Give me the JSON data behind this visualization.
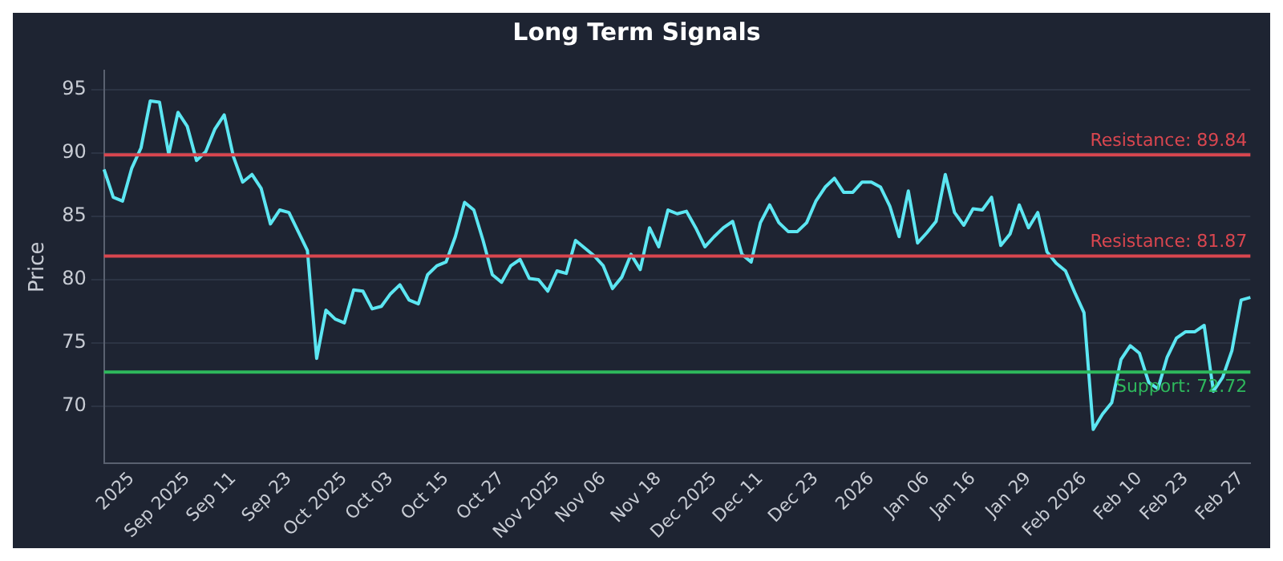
{
  "chart_data": {
    "type": "line",
    "title": "Long Term Signals",
    "ylabel": "Price",
    "categories": [
      null,
      null,
      null,
      "2025",
      null,
      null,
      null,
      null,
      null,
      "Sep 2025",
      null,
      null,
      null,
      null,
      "Sep 11",
      null,
      null,
      null,
      null,
      null,
      "Sep 23",
      null,
      null,
      null,
      null,
      null,
      "Oct 2025",
      null,
      null,
      null,
      null,
      "Oct 03",
      null,
      null,
      null,
      null,
      null,
      "Oct 15",
      null,
      null,
      null,
      null,
      null,
      "Oct 27",
      null,
      null,
      null,
      null,
      null,
      "Nov 2025",
      null,
      null,
      null,
      null,
      "Nov 06",
      null,
      null,
      null,
      null,
      null,
      "Nov 18",
      null,
      null,
      null,
      null,
      null,
      "Dec 2025",
      null,
      null,
      null,
      null,
      "Dec 11",
      null,
      null,
      null,
      null,
      null,
      "Dec 23",
      null,
      null,
      null,
      null,
      null,
      "2026",
      null,
      null,
      null,
      null,
      null,
      "Jan 06",
      null,
      null,
      null,
      null,
      "Jan 16",
      null,
      null,
      null,
      null,
      null,
      "Jan 29",
      null,
      null,
      null,
      null,
      null,
      "Feb 2026",
      null,
      null,
      null,
      null,
      null,
      "Feb 10",
      null,
      null,
      null,
      null,
      "Feb 23",
      null,
      null,
      null,
      null,
      null,
      "Feb 27",
      null
    ],
    "series": [
      {
        "color": "#5ce6f2",
        "values": [
          88.7,
          86.5,
          86.2,
          88.8,
          90.4,
          94.1,
          94.0,
          89.9,
          93.2,
          92.1,
          89.4,
          90.1,
          91.9,
          93.0,
          89.7,
          87.7,
          88.3,
          87.2,
          84.4,
          85.5,
          85.3,
          83.8,
          82.3,
          73.8,
          77.6,
          76.9,
          76.6,
          79.2,
          79.1,
          77.7,
          77.9,
          78.9,
          79.6,
          78.4,
          78.1,
          80.4,
          81.1,
          81.4,
          83.4,
          86.1,
          85.5,
          83.1,
          80.4,
          79.8,
          81.1,
          81.6,
          80.1,
          80.0,
          79.1,
          80.7,
          80.5,
          83.1,
          82.5,
          81.9,
          81.1,
          79.3,
          80.2,
          82.0,
          80.8,
          84.1,
          82.6,
          85.5,
          85.2,
          85.4,
          84.1,
          82.6,
          83.4,
          84.1,
          84.6,
          82.0,
          81.4,
          84.5,
          85.9,
          84.5,
          83.8,
          83.8,
          84.5,
          86.2,
          87.3,
          88.0,
          86.9,
          86.9,
          87.7,
          87.7,
          87.3,
          85.8,
          83.4,
          87.0,
          82.9,
          83.7,
          84.6,
          88.3,
          85.3,
          84.3,
          85.6,
          85.5,
          86.5,
          82.7,
          83.6,
          85.9,
          84.1,
          85.3,
          82.2,
          81.3,
          80.7,
          79.0,
          77.4,
          68.2,
          69.4,
          70.3,
          73.7,
          74.8,
          74.2,
          71.9,
          71.4,
          73.9,
          75.4,
          75.9,
          75.9,
          76.4,
          71.2,
          72.3,
          74.4,
          78.4,
          78.6
        ]
      }
    ],
    "ylim": [
      65.5,
      96.5
    ],
    "yticks": [
      70,
      75,
      80,
      85,
      90,
      95
    ],
    "grid": "y",
    "legend": false,
    "marker": "none",
    "line_style": "solid",
    "ref_lines": [
      {
        "axis": "y",
        "value": 89.84,
        "label": "Resistance: 89.84",
        "color": "#d9464f"
      },
      {
        "axis": "y",
        "value": 81.87,
        "label": "Resistance: 81.87",
        "color": "#d9464f"
      },
      {
        "axis": "y",
        "value": 72.72,
        "label": "Support: 72.72",
        "color": "#2eb85c"
      }
    ]
  }
}
